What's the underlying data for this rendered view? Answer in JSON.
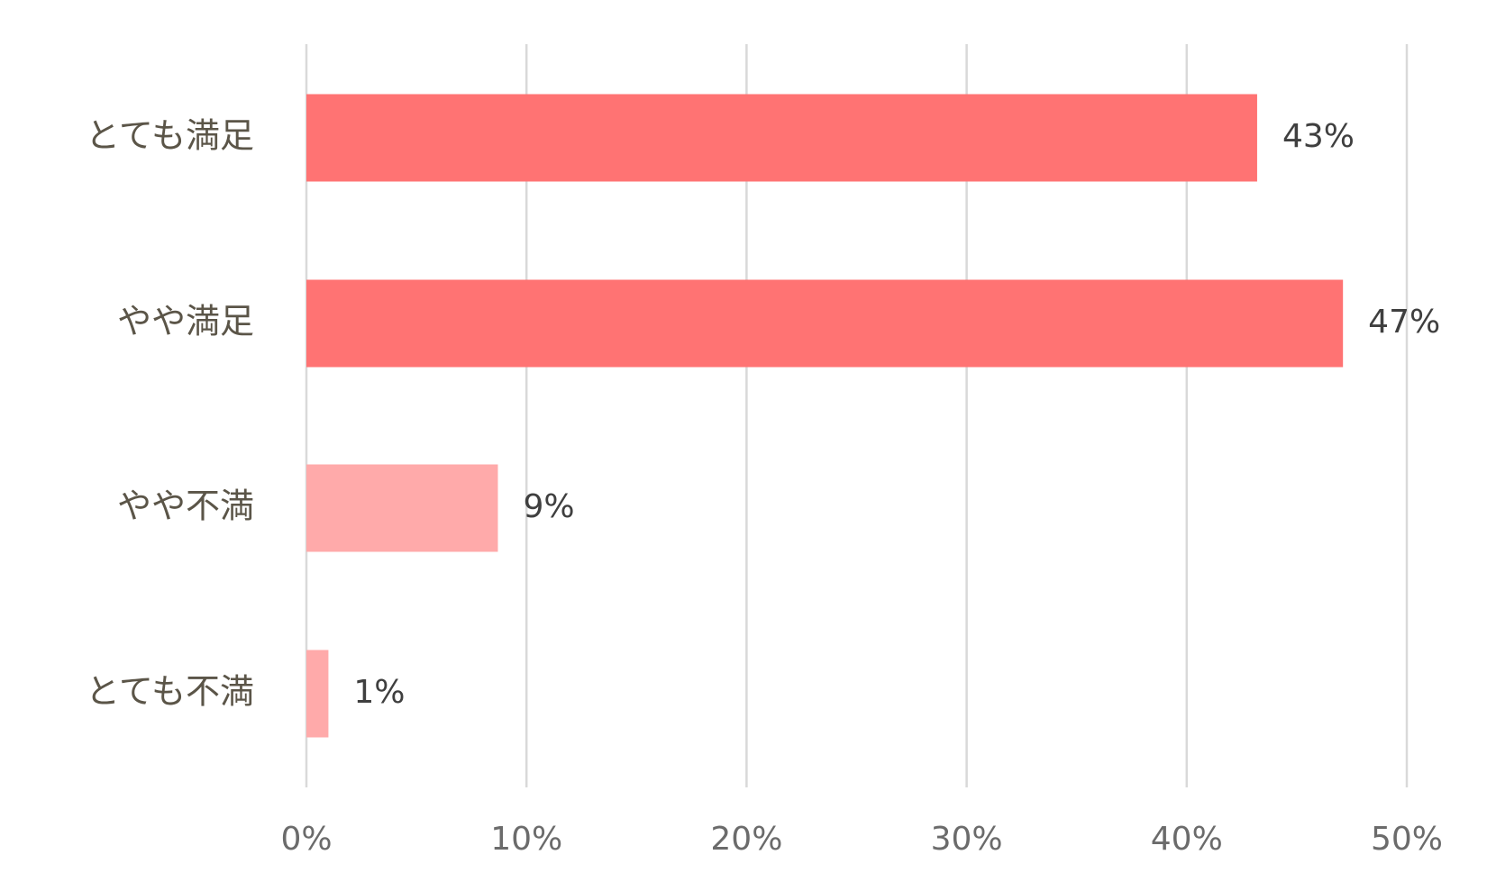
{
  "chart_data": {
    "type": "bar",
    "horizontal": true,
    "categories": [
      "とても満足",
      "やや満足",
      "やや不満",
      "とても不満"
    ],
    "values": [
      43.2,
      47.1,
      8.7,
      1.0
    ],
    "value_labels": [
      "43%",
      "47%",
      "9%",
      "1%"
    ],
    "colors": [
      "#ff7373",
      "#ff7373",
      "#ffaaaa",
      "#ffaaaa"
    ],
    "xlim": [
      0,
      50
    ],
    "xticks": [
      {
        "value": 0,
        "label": "0%"
      },
      {
        "value": 10,
        "label": "10%"
      },
      {
        "value": 20,
        "label": "20%"
      },
      {
        "value": 30,
        "label": "30%"
      },
      {
        "value": 40,
        "label": "40%"
      },
      {
        "value": 50,
        "label": "50%"
      }
    ],
    "grid": true
  }
}
